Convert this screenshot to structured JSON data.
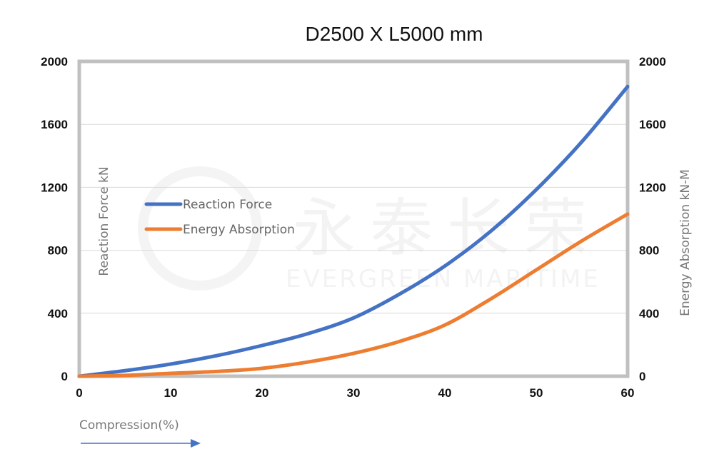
{
  "chart_data": {
    "type": "line",
    "title": "D2500 X L5000 mm",
    "xlabel": "Compression(%)",
    "ylabel": "Reaction Force kN",
    "y2label": "Energy Absorption kN-M",
    "xlim": [
      0,
      60
    ],
    "ylim": [
      0,
      2000
    ],
    "y2lim": [
      0,
      2000
    ],
    "x_ticks": [
      "0",
      "10",
      "20",
      "30",
      "40",
      "50",
      "60"
    ],
    "y_ticks": [
      "0",
      "400",
      "800",
      "1200",
      "1600",
      "2000"
    ],
    "y2_ticks": [
      "0",
      "400",
      "800",
      "1200",
      "1600",
      "2000"
    ],
    "grid": true,
    "legend_position": "left-center",
    "x": [
      0,
      5,
      10,
      15,
      20,
      25,
      30,
      35,
      40,
      45,
      50,
      55,
      60
    ],
    "series": [
      {
        "name": "Reaction Force",
        "axis": "left",
        "color": "#4472C4",
        "values": [
          0,
          35,
          77,
          130,
          195,
          270,
          370,
          520,
          700,
          920,
          1185,
          1490,
          1840
        ]
      },
      {
        "name": "Energy Absorption",
        "axis": "right",
        "color": "#ED7D31",
        "values": [
          0,
          5,
          18,
          30,
          50,
          90,
          145,
          220,
          325,
          490,
          675,
          860,
          1030
        ]
      }
    ]
  },
  "watermark": {
    "chinese": "永泰长荣",
    "english": "EVERGREEN MARITIME"
  }
}
